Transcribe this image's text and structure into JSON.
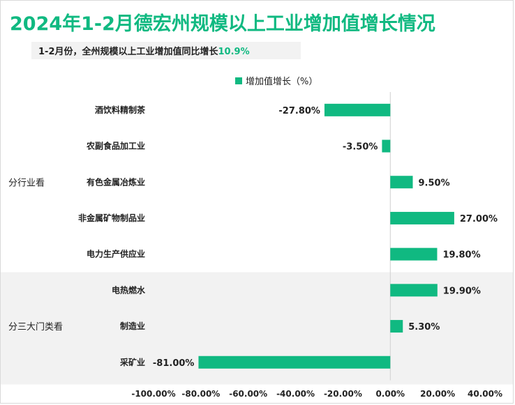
{
  "header": {
    "title": "2024年1-2月德宏州规模以上工业增加值增长情况",
    "subtitle_prefix": "1-2月份，全州规模以上工业增加值同比增长",
    "subtitle_value": "10.9%"
  },
  "colors": {
    "title": "#10b981",
    "bar": "#10b981",
    "group_band": "#f2f2f2"
  },
  "chart_data": {
    "type": "bar",
    "orientation": "horizontal",
    "legend": {
      "label": "增加值增长（%）",
      "position": "top"
    },
    "groups": [
      {
        "label": "分行业看",
        "categories": [
          "酒饮料精制茶",
          "农副食品加工业",
          "有色金属冶炼业",
          "非金属矿物制品业",
          "电力生产供应业"
        ]
      },
      {
        "label": "分三大门类看",
        "categories": [
          "电热燃水",
          "制造业",
          "采矿业"
        ]
      }
    ],
    "categories": [
      "酒饮料精制茶",
      "农副食品加工业",
      "有色金属冶炼业",
      "非金属矿物制品业",
      "电力生产供应业",
      "电热燃水",
      "制造业",
      "采矿业"
    ],
    "values": [
      -27.8,
      -3.5,
      9.5,
      27.0,
      19.8,
      19.9,
      5.3,
      -81.0
    ],
    "value_labels": [
      "-27.80%",
      "-3.50%",
      "9.50%",
      "27.00%",
      "19.80%",
      "19.90%",
      "5.30%",
      "-81.00%"
    ],
    "x_ticks": [
      -100,
      -80,
      -60,
      -40,
      -20,
      0,
      20,
      40
    ],
    "x_tick_labels": [
      "-100.00%",
      "-80.00%",
      "-60.00%",
      "-40.00%",
      "-20.00%",
      "0.00%",
      "20.00%",
      "40.00%"
    ],
    "xlim": [
      -100,
      40
    ],
    "grid": false
  }
}
